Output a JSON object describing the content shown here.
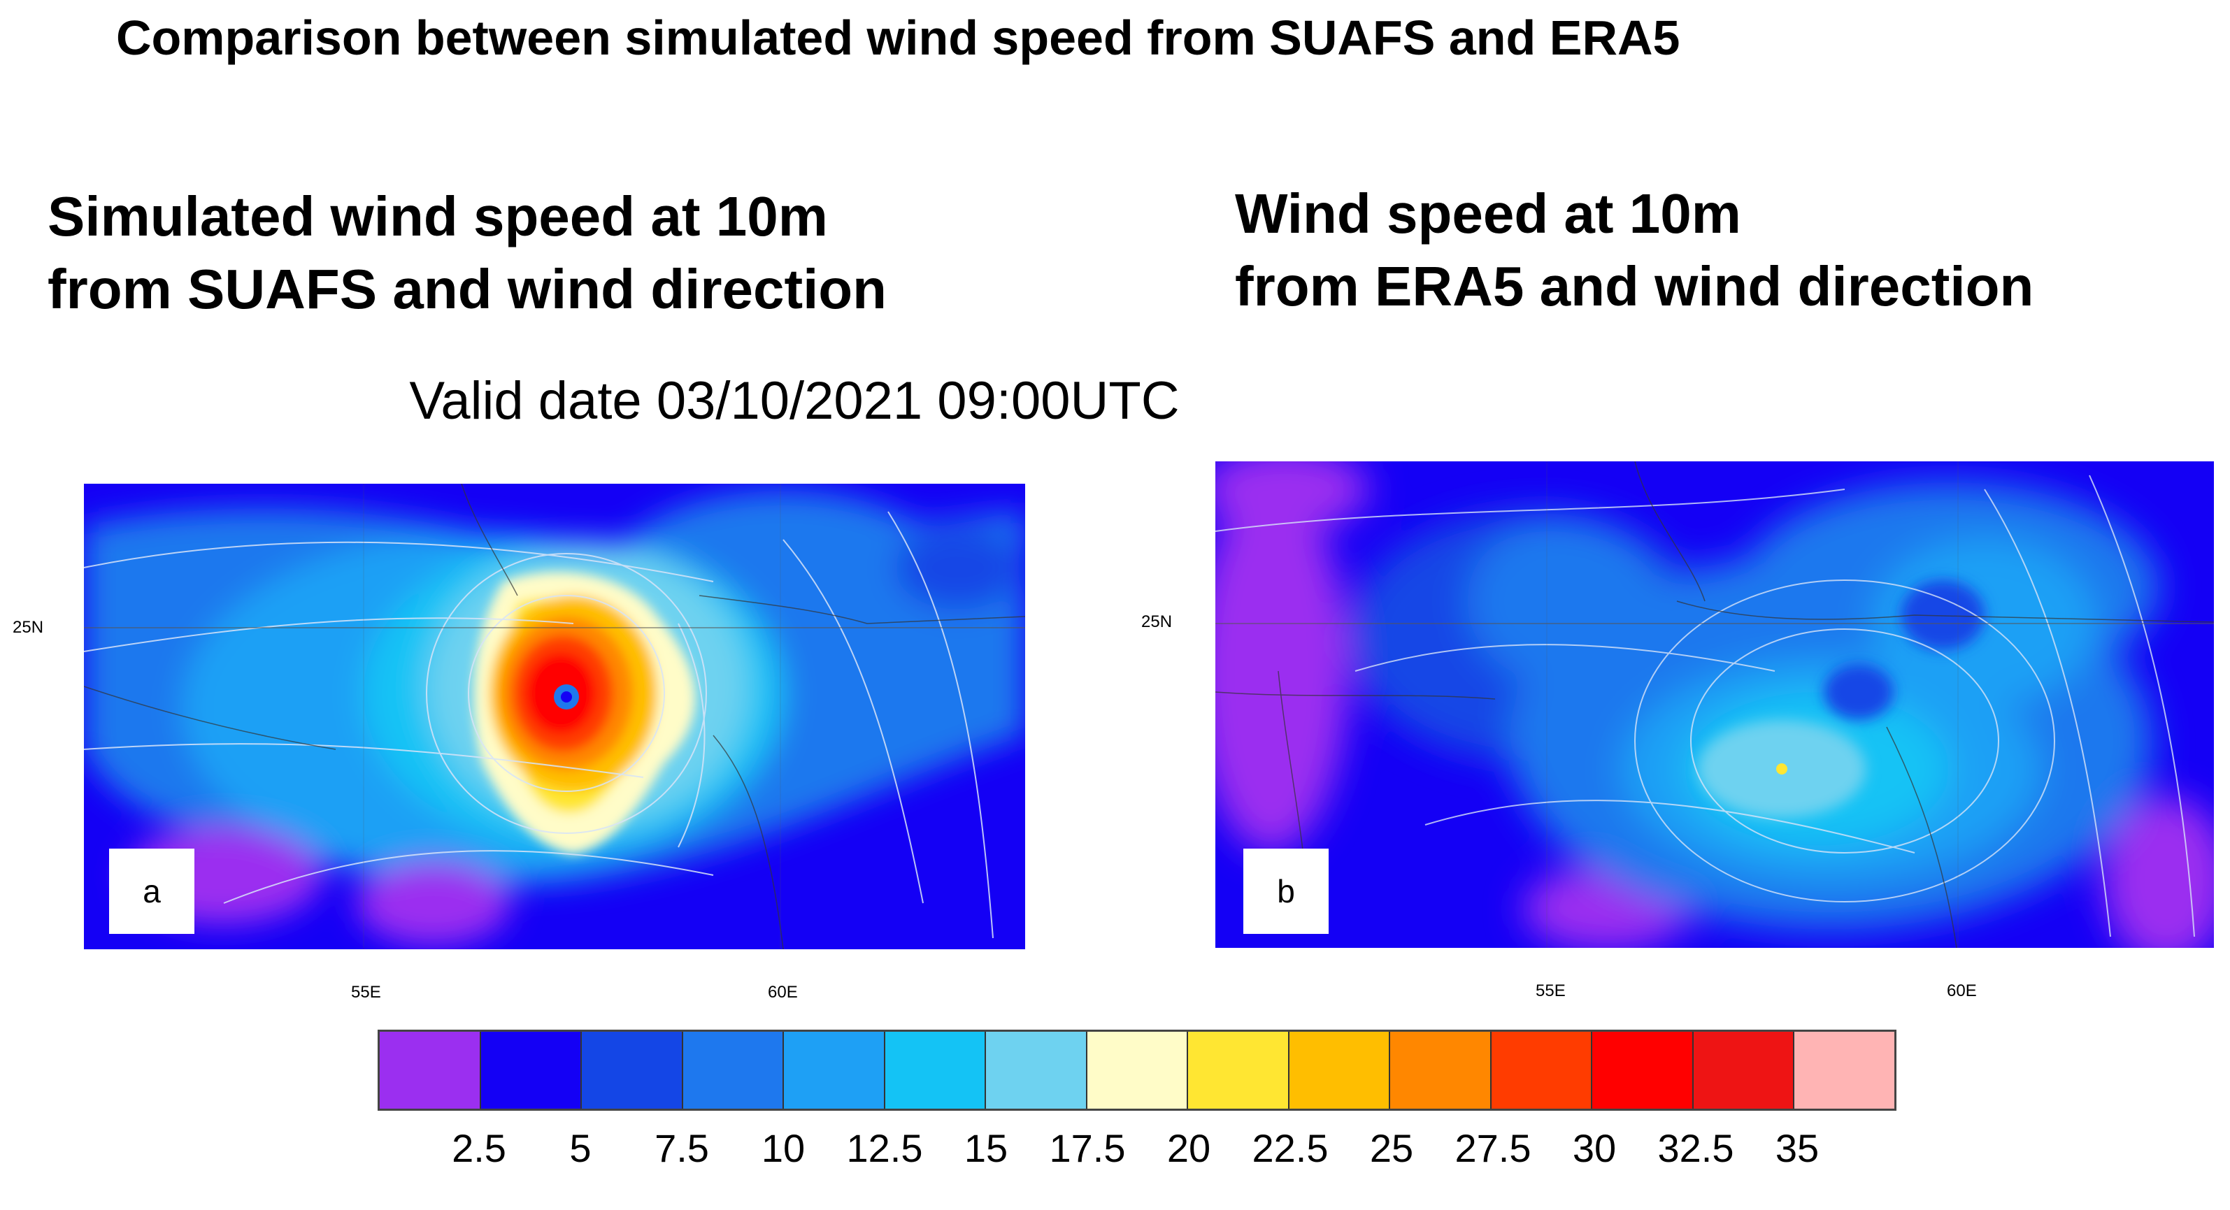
{
  "figure": {
    "title": "Comparison between simulated wind speed from SUAFS and ERA5",
    "valid_date": "Valid date 03/10/2021 09:00UTC"
  },
  "panels": [
    {
      "id": "a",
      "title_line1": "Simulated wind speed at 10m",
      "title_line2": "from SUAFS and wind direction",
      "letter": "a",
      "lat_label": "25N",
      "lon_labels": [
        "55E",
        "60E"
      ]
    },
    {
      "id": "b",
      "title_line1": "Wind speed at 10m",
      "title_line2": "from ERA5 and wind direction",
      "letter": "b",
      "lat_label": "25N",
      "lon_labels": [
        "55E",
        "60E"
      ]
    }
  ],
  "colorbar": {
    "labels": [
      "2.5",
      "5",
      "7.5",
      "10",
      "12.5",
      "15",
      "17.5",
      "20",
      "22.5",
      "25",
      "27.5",
      "30",
      "32.5",
      "35"
    ],
    "colors": [
      "#9b2ff0",
      "#1400f5",
      "#1446e6",
      "#1e78ee",
      "#1ea0f5",
      "#14c3f5",
      "#6ed2f0",
      "#fffcc8",
      "#ffe632",
      "#ffbe00",
      "#ff8700",
      "#ff3c00",
      "#ff0000",
      "#ee1414",
      "#ffb4b4"
    ]
  }
}
